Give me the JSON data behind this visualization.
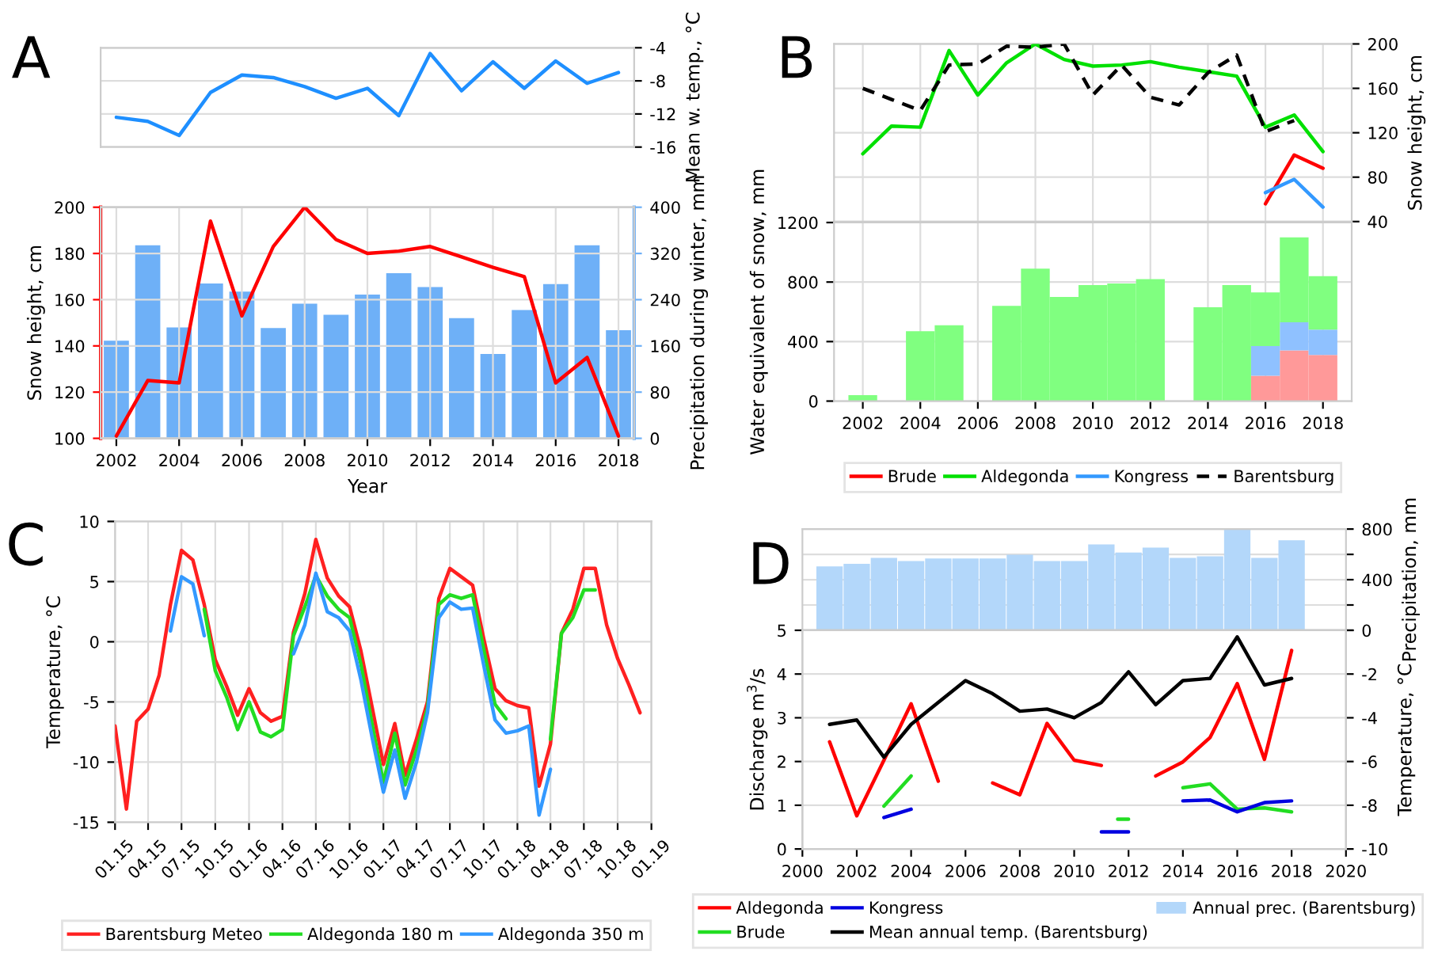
{
  "chart_data": [
    {
      "type": "line",
      "title": "A",
      "ylabel": "Mean w. temp., °C",
      "x": [
        2002,
        2003,
        2004,
        2005,
        2006,
        2007,
        2008,
        2009,
        2010,
        2011,
        2012,
        2013,
        2014,
        2015,
        2016,
        2017,
        2018
      ],
      "xlim": [
        2001.5,
        2018.5
      ],
      "ylim": [
        -16,
        -4
      ],
      "yticks": [
        -16,
        -12,
        -8,
        -4
      ],
      "grid": "y",
      "tick_labels": "y",
      "series": [
        {
          "color": "#1e8fff",
          "values": [
            -12.4,
            -12.9,
            -14.6,
            -9.4,
            -7.3,
            -7.6,
            -8.7,
            -10.1,
            -8.9,
            -12.2,
            -4.7,
            -9.2,
            -5.7,
            -8.9,
            -5.6,
            -8.3,
            -7.0
          ]
        }
      ]
    },
    {
      "type": "line",
      "xlabel": "Year",
      "ylabel": "Snow height, cm",
      "y2label": "Precipitation during winter, mm",
      "x": [
        2002,
        2003,
        2004,
        2005,
        2006,
        2007,
        2008,
        2009,
        2010,
        2011,
        2012,
        2013,
        2014,
        2015,
        2016,
        2017,
        2018
      ],
      "xlim": [
        2001.5,
        2018.5
      ],
      "xticks": [
        2002,
        2004,
        2006,
        2008,
        2010,
        2012,
        2014,
        2016,
        2018
      ],
      "ylim": [
        100,
        200
      ],
      "yticks": [
        100,
        120,
        140,
        160,
        180,
        200
      ],
      "y2lim": [
        0,
        400
      ],
      "y2ticks": [
        0,
        80,
        160,
        240,
        320,
        400
      ],
      "grid": true,
      "series": [
        {
          "type": "bar",
          "axis": "y2",
          "color": "#6eb0f7",
          "values": [
            169,
            334,
            192,
            268,
            254,
            191,
            233,
            214,
            249,
            286,
            262,
            208,
            146,
            222,
            267,
            334,
            187
          ]
        },
        {
          "color": "#ff0000",
          "values": [
            101,
            125,
            124,
            194,
            153,
            183,
            200,
            186,
            180,
            181,
            183,
            178.5,
            174,
            170,
            124,
            135,
            101
          ]
        }
      ]
    },
    {
      "type": "line",
      "title": "B",
      "ylabel": "Snow height, cm",
      "x": [
        2002,
        2003,
        2004,
        2005,
        2006,
        2007,
        2008,
        2009,
        2010,
        2011,
        2012,
        2013,
        2014,
        2015,
        2016,
        2017,
        2018
      ],
      "xlim": [
        2001,
        2019
      ],
      "xticks": [
        2002,
        2004,
        2006,
        2008,
        2010,
        2012,
        2014,
        2016,
        2018
      ],
      "ylim": [
        40,
        200
      ],
      "yticks": [
        40,
        80,
        120,
        160,
        200
      ],
      "grid": true,
      "tick_labels": "y",
      "legend": "bottom",
      "series": [
        {
          "name": "Brude",
          "color": "#ff0000",
          "values": [
            null,
            null,
            null,
            null,
            null,
            null,
            null,
            null,
            null,
            null,
            null,
            null,
            null,
            null,
            56,
            100,
            88
          ]
        },
        {
          "name": "Aldegonda",
          "color": "#00e000",
          "values": [
            101,
            126,
            125,
            194,
            154,
            183,
            200,
            186,
            180,
            181,
            184,
            179,
            175,
            171,
            125,
            136,
            103
          ]
        },
        {
          "name": "Kongress",
          "color": "#3399ff",
          "values": [
            null,
            null,
            null,
            null,
            null,
            null,
            null,
            null,
            null,
            null,
            null,
            null,
            null,
            null,
            66,
            78,
            53
          ]
        },
        {
          "name": "Barentsburg",
          "color": "#000000",
          "line_style": "dashed",
          "values": [
            160,
            150,
            140,
            181,
            182,
            198,
            197,
            200,
            154,
            181,
            152,
            145,
            174,
            190,
            121,
            131,
            null
          ]
        }
      ]
    },
    {
      "type": "bar",
      "ylabel": "Water equivalent of snow, mm",
      "x": [
        2002,
        2003,
        2004,
        2005,
        2006,
        2007,
        2008,
        2009,
        2010,
        2011,
        2012,
        2013,
        2014,
        2015,
        2016,
        2017,
        2018
      ],
      "xlim": [
        2001,
        2019
      ],
      "xticks": [
        2002,
        2004,
        2006,
        2008,
        2010,
        2012,
        2014,
        2016,
        2018
      ],
      "ylim": [
        0,
        1200
      ],
      "yticks": [
        0,
        400,
        800,
        1200
      ],
      "grid": true,
      "stacked": true,
      "series": [
        {
          "color": "#ff9999",
          "values": [
            null,
            null,
            null,
            null,
            null,
            null,
            null,
            null,
            null,
            null,
            null,
            null,
            null,
            null,
            170,
            340,
            310
          ]
        },
        {
          "color": "#8fc1ff",
          "values": [
            null,
            null,
            null,
            null,
            null,
            null,
            null,
            null,
            null,
            null,
            null,
            null,
            null,
            null,
            200,
            190,
            170
          ]
        },
        {
          "color": "#80ff80",
          "values": [
            40,
            null,
            470,
            510,
            null,
            640,
            890,
            700,
            780,
            790,
            820,
            null,
            630,
            780,
            360,
            570,
            360
          ]
        }
      ]
    },
    {
      "type": "line",
      "title": "C",
      "ylabel": "Temperature, °C",
      "x": [
        "2015-01",
        "2015-02",
        "2015-03",
        "2015-04",
        "2015-05",
        "2015-06",
        "2015-07",
        "2015-08",
        "2015-09",
        "2015-10",
        "2015-11",
        "2015-12",
        "2016-01",
        "2016-02",
        "2016-03",
        "2016-04",
        "2016-05",
        "2016-06",
        "2016-07",
        "2016-08",
        "2016-09",
        "2016-10",
        "2016-11",
        "2016-12",
        "2017-01",
        "2017-02",
        "2017-03",
        "2017-04",
        "2017-05",
        "2017-06",
        "2017-07",
        "2017-08",
        "2017-09",
        "2017-10",
        "2017-11",
        "2017-12",
        "2018-01",
        "2018-02",
        "2018-03",
        "2018-04",
        "2018-05",
        "2018-06",
        "2018-07",
        "2018-08",
        "2018-09",
        "2018-10",
        "2018-11",
        "2018-12"
      ],
      "xlim": [
        "2015-01",
        "2019-01"
      ],
      "xticks": [
        {
          "value": "2015-01",
          "label": "01.15"
        },
        {
          "value": "2015-04",
          "label": "04.15"
        },
        {
          "value": "2015-07",
          "label": "07.15"
        },
        {
          "value": "2015-10",
          "label": "10.15"
        },
        {
          "value": "2016-01",
          "label": "01.16"
        },
        {
          "value": "2016-04",
          "label": "04.16"
        },
        {
          "value": "2016-07",
          "label": "07.16"
        },
        {
          "value": "2016-10",
          "label": "10.16"
        },
        {
          "value": "2017-01",
          "label": "01.17"
        },
        {
          "value": "2017-04",
          "label": "04.17"
        },
        {
          "value": "2017-07",
          "label": "07.17"
        },
        {
          "value": "2017-10",
          "label": "10.17"
        },
        {
          "value": "2018-01",
          "label": "01.18"
        },
        {
          "value": "2018-04",
          "label": "04.18"
        },
        {
          "value": "2018-07",
          "label": "07.18"
        },
        {
          "value": "2018-10",
          "label": "10.18"
        },
        {
          "value": "2019-01",
          "label": "01.19"
        }
      ],
      "ylim": [
        -15,
        10
      ],
      "yticks": [
        -15,
        -10,
        -5,
        0,
        5,
        10
      ],
      "grid": true,
      "legend": "bottom",
      "series": [
        {
          "name": "Barentsburg Meteo",
          "color": "#ff2020",
          "values": [
            -7.0,
            -13.9,
            -6.6,
            -5.6,
            -2.8,
            3.1,
            7.6,
            6.8,
            3.1,
            -1.5,
            -3.7,
            -6.1,
            -3.9,
            -5.9,
            -6.6,
            -6.2,
            0.8,
            4.0,
            8.5,
            5.3,
            3.8,
            2.9,
            -0.8,
            -5.4,
            -10.2,
            -6.8,
            -11.1,
            -8.1,
            -5.0,
            3.6,
            6.1,
            5.4,
            4.7,
            0.3,
            -3.9,
            -4.9,
            -5.3,
            -5.5,
            -12.0,
            -8.5,
            0.7,
            2.7,
            6.1,
            6.1,
            1.4,
            -1.4,
            -3.6,
            -5.9
          ]
        },
        {
          "name": "Aldegonda 180 m",
          "color": "#22dd22",
          "values": [
            null,
            null,
            null,
            null,
            null,
            null,
            null,
            null,
            2.7,
            -2.4,
            -4.6,
            -7.3,
            -5.0,
            -7.5,
            -7.9,
            -7.3,
            0.5,
            2.9,
            5.5,
            3.8,
            2.7,
            2.0,
            -1.9,
            -6.8,
            -11.7,
            -7.6,
            -11.9,
            -9.0,
            -5.5,
            3.1,
            3.9,
            3.6,
            3.9,
            -0.6,
            -5.2,
            -6.4,
            null,
            null,
            null,
            -8.1,
            0.7,
            2.0,
            4.3,
            4.3,
            null,
            null,
            null,
            null
          ]
        },
        {
          "name": "Aldegonda 350 m",
          "color": "#3399ff",
          "values": [
            null,
            null,
            null,
            null,
            null,
            0.9,
            5.4,
            4.8,
            0.5,
            null,
            null,
            null,
            null,
            null,
            null,
            null,
            -1.0,
            1.4,
            5.7,
            2.5,
            2.0,
            0.9,
            -3.2,
            -7.9,
            -12.5,
            -9.0,
            -13.0,
            -10.0,
            -5.9,
            2.0,
            3.3,
            2.7,
            2.8,
            -1.9,
            -6.5,
            -7.6,
            -7.4,
            -7.0,
            -14.4,
            -10.6,
            null,
            null,
            null,
            null,
            null,
            null,
            null,
            null
          ]
        }
      ]
    },
    {
      "type": "bar",
      "title": "D",
      "ylabel": "Precipitation, mm",
      "x": [
        2001,
        2002,
        2003,
        2004,
        2005,
        2006,
        2007,
        2008,
        2009,
        2010,
        2011,
        2012,
        2013,
        2014,
        2015,
        2016,
        2017,
        2018
      ],
      "xlim": [
        2000,
        2020
      ],
      "ylim": [
        0,
        800
      ],
      "yticks": [
        0,
        {
          "value": 200,
          "label": null
        },
        400,
        {
          "value": 600,
          "label": null
        },
        800
      ],
      "grid": "y",
      "tick_labels": "y",
      "series": [
        {
          "name": "Annual prec. (Barentsburg)",
          "color": "#b3d7fa",
          "values": [
            505,
            526,
            573,
            547,
            568,
            568,
            568,
            598,
            547,
            547,
            678,
            615,
            653,
            573,
            585,
            800,
            573,
            712
          ]
        }
      ]
    },
    {
      "type": "line",
      "ylabel": "Discharge m$^{3}$/s",
      "y2label": "Temperature, °C",
      "x": [
        2001,
        2002,
        2003,
        2004,
        2005,
        2006,
        2007,
        2008,
        2009,
        2010,
        2011,
        2012,
        2013,
        2014,
        2015,
        2016,
        2017,
        2018
      ],
      "xlim": [
        2000,
        2020
      ],
      "xticks": [
        2000,
        2002,
        2004,
        2006,
        2008,
        2010,
        2012,
        2014,
        2016,
        2018,
        2020
      ],
      "ylim": [
        0,
        5
      ],
      "yticks": [
        0,
        1,
        2,
        3,
        4,
        5
      ],
      "y2lim": [
        -10,
        0
      ],
      "y2ticks": [
        -10,
        -8,
        -6,
        -4,
        -2,
        {
          "value": 0,
          "label": null
        }
      ],
      "grid": "y",
      "legend": "bottom",
      "series": [
        {
          "name": "Aldegonda",
          "color": "#ff0000",
          "values": [
            2.45,
            0.76,
            2.03,
            3.32,
            1.55,
            null,
            1.51,
            1.24,
            2.87,
            2.03,
            1.91,
            null,
            1.67,
            1.99,
            2.55,
            3.78,
            2.05,
            4.54
          ]
        },
        {
          "name": "Brude",
          "color": "#22dd22",
          "x": [
            2003,
            2004,
            2008,
            2011.6,
            2012,
            2013,
            2014,
            2015,
            2016,
            2017,
            2018
          ],
          "values": [
            0.98,
            1.67,
            null,
            0.68,
            0.68,
            null,
            1.4,
            1.49,
            0.91,
            0.94,
            0.85
          ]
        },
        {
          "name": "Kongress",
          "color": "#0000e0",
          "x": [
            2003,
            2004,
            2008,
            2011,
            2012,
            2013,
            2014,
            2015,
            2016,
            2017,
            2018
          ],
          "values": [
            0.72,
            0.91,
            null,
            0.39,
            0.39,
            null,
            1.1,
            1.12,
            0.85,
            1.06,
            1.1
          ]
        },
        {
          "name": "Mean annual temp. (Barentsburg)",
          "color": "#000000",
          "axis": "y2",
          "values": [
            -4.3,
            -4.1,
            -5.8,
            -4.3,
            -3.3,
            -2.3,
            -2.9,
            -3.7,
            -3.6,
            -4.0,
            -3.3,
            -1.9,
            -3.4,
            -2.3,
            -2.2,
            -0.3,
            -2.5,
            -2.2
          ]
        }
      ]
    }
  ]
}
